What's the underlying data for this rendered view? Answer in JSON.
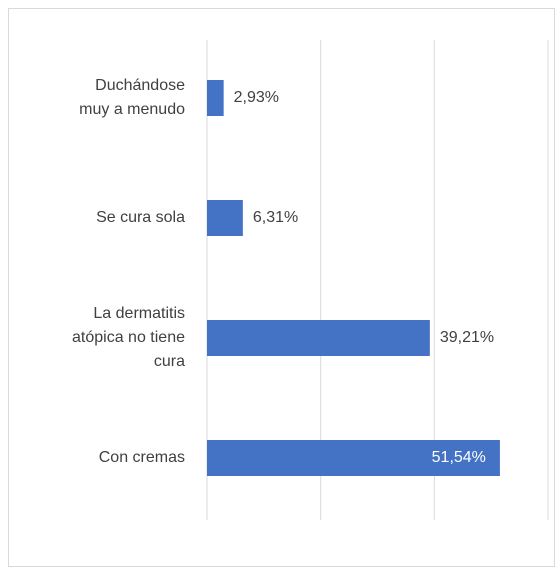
{
  "chart_data": {
    "type": "barh",
    "categories": [
      "Duchándose\nmuy a menudo",
      "Se cura sola",
      "La dermatitis\natópica no tiene\ncura",
      "Con cremas"
    ],
    "values": [
      2.93,
      6.31,
      39.21,
      51.54
    ],
    "value_labels": [
      "2,93%",
      "6,31%",
      "39,21%",
      "51,54%"
    ],
    "color": "#4472c4",
    "xlim": [
      0,
      60
    ],
    "xticks": [
      0,
      20,
      40,
      60
    ],
    "grid": true
  }
}
